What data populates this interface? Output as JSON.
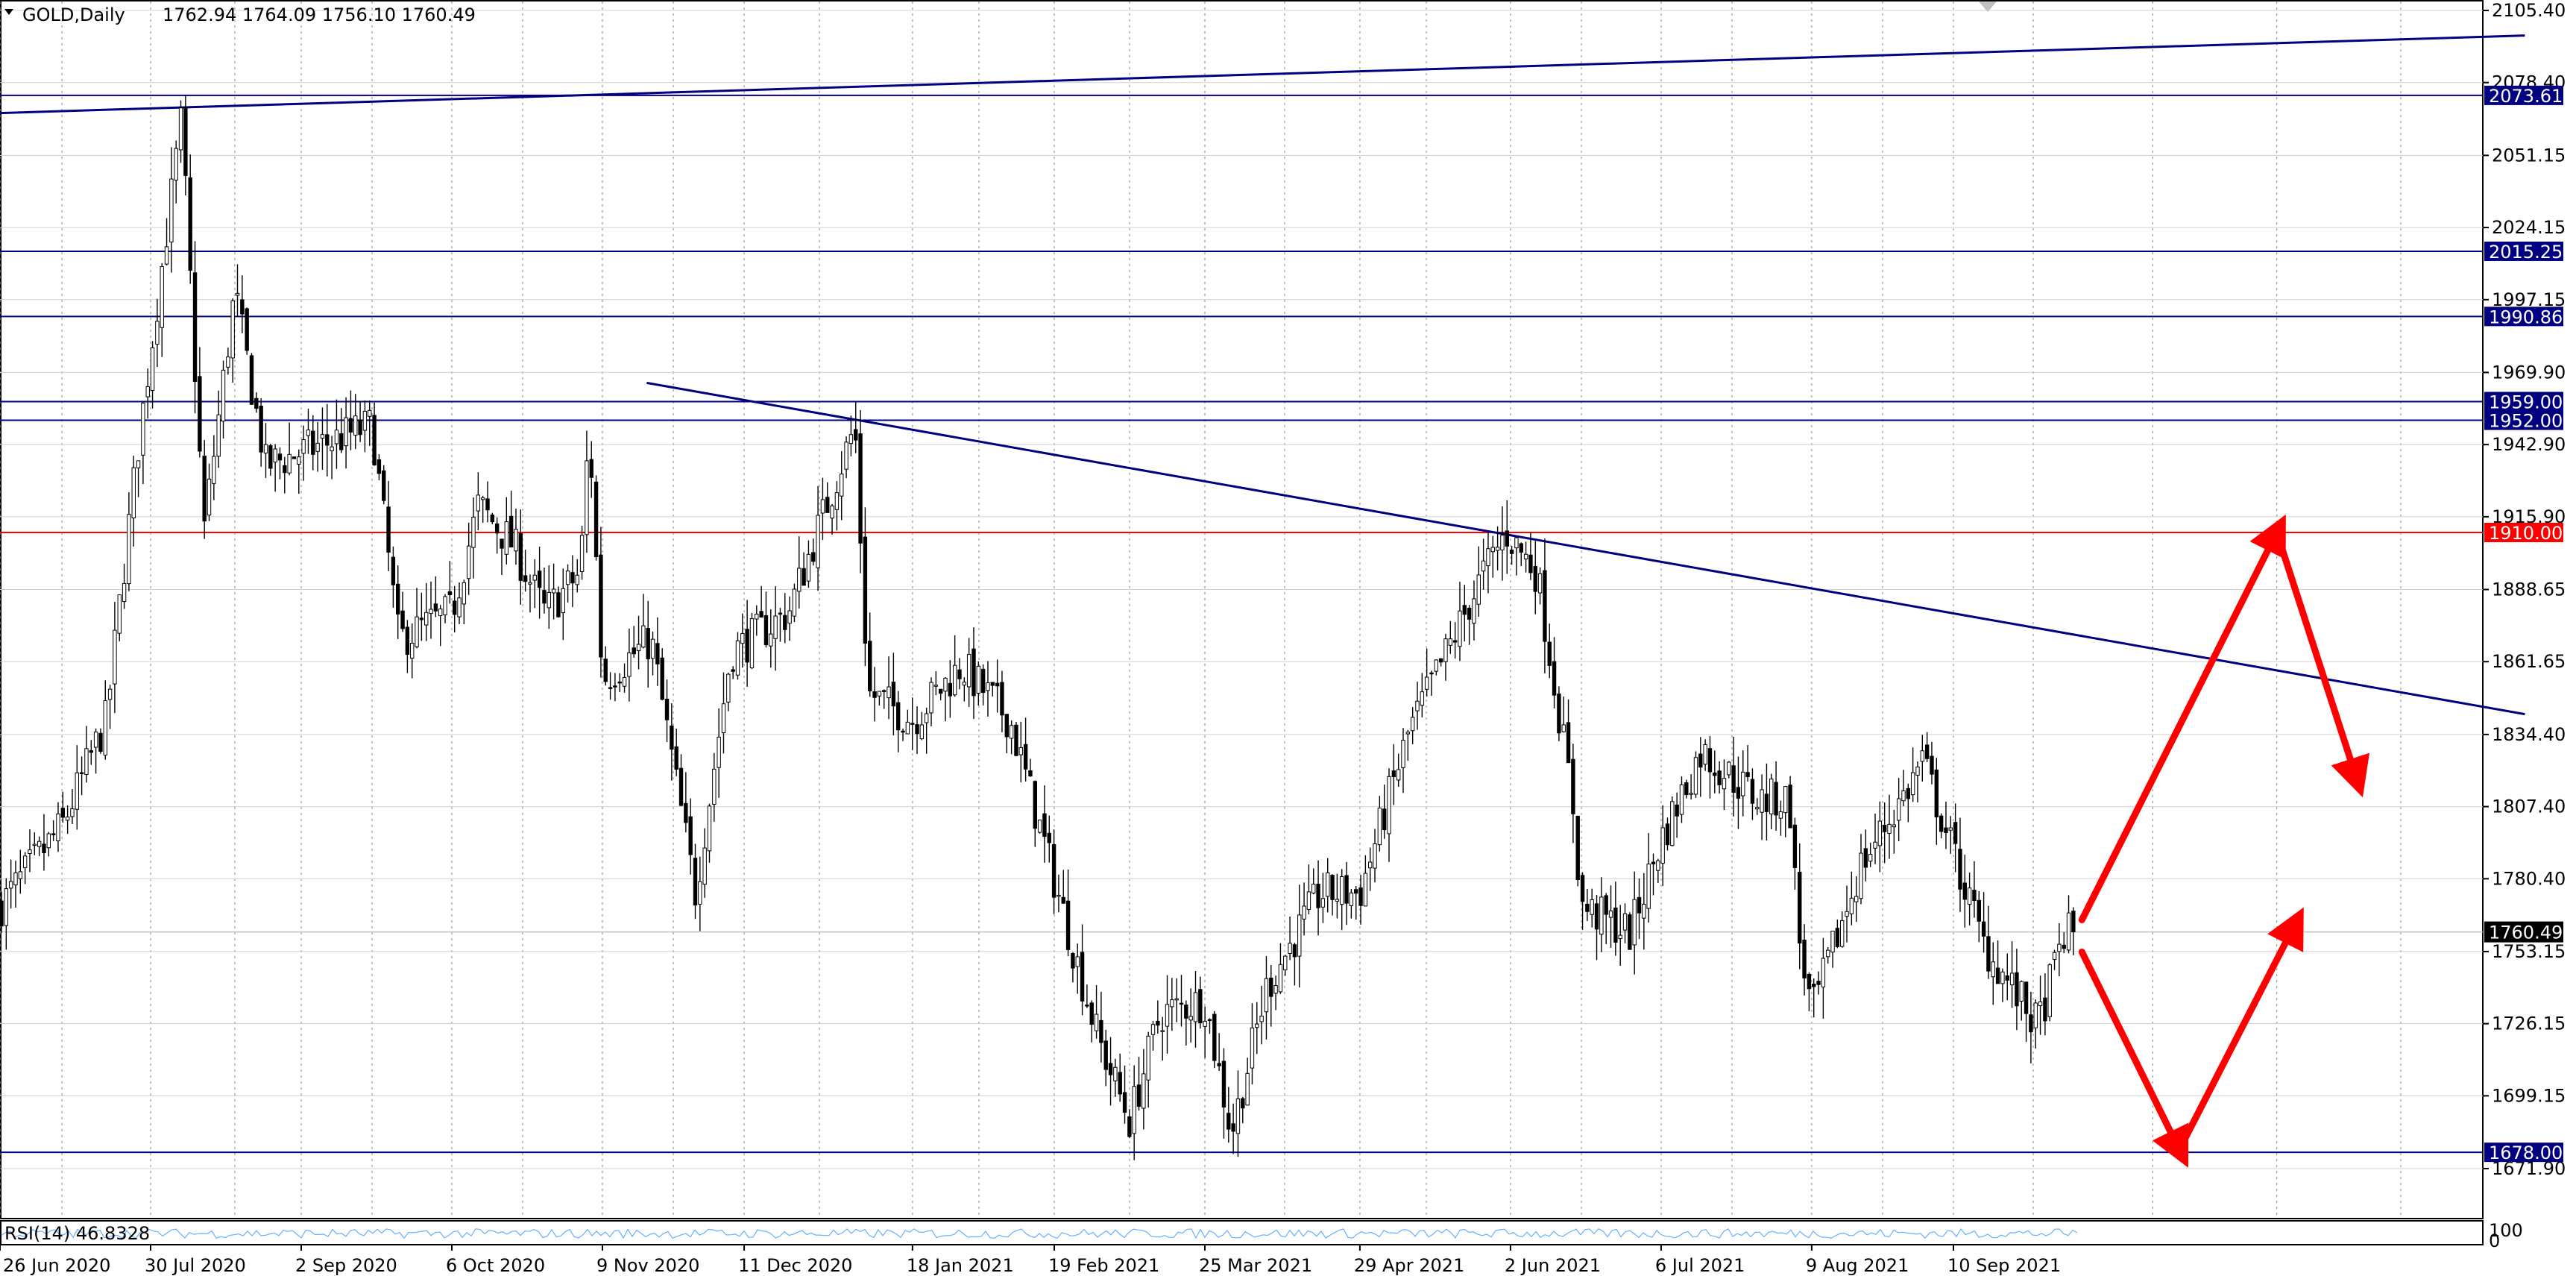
{
  "header": {
    "symbol": "GOLD,Daily",
    "ohlc": "1762.94 1764.09 1756.10 1760.49"
  },
  "price_axis": {
    "ticks": [
      "2105.40",
      "2078.40",
      "2051.15",
      "2024.15",
      "1997.15",
      "1969.90",
      "1942.90",
      "1915.90",
      "1888.65",
      "1861.65",
      "1834.40",
      "1807.40",
      "1780.40",
      "1753.15",
      "1726.15",
      "1699.15",
      "1671.90"
    ]
  },
  "levels": [
    {
      "label": "2073.61",
      "color": "#000080"
    },
    {
      "label": "2015.25",
      "color": "#000080"
    },
    {
      "label": "1990.86",
      "color": "#000080"
    },
    {
      "label": "1959.00",
      "color": "#000080"
    },
    {
      "label": "1952.00",
      "color": "#000080"
    },
    {
      "label": "1910.00",
      "color": "#ff0000"
    },
    {
      "label": "1678.00",
      "color": "#000080"
    }
  ],
  "current_price": {
    "label": "1760.49",
    "color": "#000000"
  },
  "time_axis": {
    "labels": [
      "26 Jun 2020",
      "30 Jul 2020",
      "2 Sep 2020",
      "6 Oct 2020",
      "9 Nov 2020",
      "11 Dec 2020",
      "18 Jan 2021",
      "19 Feb 2021",
      "25 Mar 2021",
      "29 Apr 2021",
      "2 Jun 2021",
      "6 Jul 2021",
      "9 Aug 2021",
      "10 Sep 2021"
    ]
  },
  "rsi": {
    "label": "RSI(14) 46.8328",
    "scale_top": "100",
    "scale_bottom": "0"
  },
  "chart_data": {
    "type": "candlestick",
    "symbol": "GOLD",
    "timeframe": "Daily",
    "last_bar_ohlc": [
      1762.94,
      1764.09,
      1756.1,
      1760.49
    ],
    "ylim": [
      1668,
      2110
    ],
    "grid": true,
    "horizontal_levels": [
      2073.61,
      2015.25,
      1990.86,
      1959.0,
      1952.0,
      1910.0,
      1678.0
    ],
    "close_series": [
      {
        "date": "2020-06-26",
        "close": 1770
      },
      {
        "date": "2020-07-10",
        "close": 1800
      },
      {
        "date": "2020-07-20",
        "close": 1840
      },
      {
        "date": "2020-07-27",
        "close": 1940
      },
      {
        "date": "2020-08-06",
        "close": 2065
      },
      {
        "date": "2020-08-11",
        "close": 1910
      },
      {
        "date": "2020-08-18",
        "close": 2000
      },
      {
        "date": "2020-08-25",
        "close": 1935
      },
      {
        "date": "2020-09-02",
        "close": 1940
      },
      {
        "date": "2020-09-10",
        "close": 1945
      },
      {
        "date": "2020-09-18",
        "close": 1950
      },
      {
        "date": "2020-09-24",
        "close": 1870
      },
      {
        "date": "2020-10-06",
        "close": 1880
      },
      {
        "date": "2020-10-12",
        "close": 1920
      },
      {
        "date": "2020-10-20",
        "close": 1905
      },
      {
        "date": "2020-10-27",
        "close": 1880
      },
      {
        "date": "2020-11-04",
        "close": 1895
      },
      {
        "date": "2020-11-06",
        "close": 1950
      },
      {
        "date": "2020-11-09",
        "close": 1855
      },
      {
        "date": "2020-11-20",
        "close": 1870
      },
      {
        "date": "2020-11-30",
        "close": 1775
      },
      {
        "date": "2020-12-08",
        "close": 1865
      },
      {
        "date": "2020-12-21",
        "close": 1880
      },
      {
        "date": "2021-01-05",
        "close": 1950
      },
      {
        "date": "2021-01-08",
        "close": 1850
      },
      {
        "date": "2021-01-18",
        "close": 1840
      },
      {
        "date": "2021-01-29",
        "close": 1860
      },
      {
        "date": "2021-02-09",
        "close": 1840
      },
      {
        "date": "2021-02-19",
        "close": 1780
      },
      {
        "date": "2021-03-01",
        "close": 1720
      },
      {
        "date": "2021-03-08",
        "close": 1690
      },
      {
        "date": "2021-03-15",
        "close": 1730
      },
      {
        "date": "2021-03-25",
        "close": 1735
      },
      {
        "date": "2021-03-31",
        "close": 1685
      },
      {
        "date": "2021-04-08",
        "close": 1740
      },
      {
        "date": "2021-04-20",
        "close": 1775
      },
      {
        "date": "2021-04-29",
        "close": 1775
      },
      {
        "date": "2021-05-10",
        "close": 1835
      },
      {
        "date": "2021-05-20",
        "close": 1870
      },
      {
        "date": "2021-05-27",
        "close": 1895
      },
      {
        "date": "2021-06-01",
        "close": 1910
      },
      {
        "date": "2021-06-08",
        "close": 1895
      },
      {
        "date": "2021-06-16",
        "close": 1810
      },
      {
        "date": "2021-06-18",
        "close": 1770
      },
      {
        "date": "2021-06-29",
        "close": 1760
      },
      {
        "date": "2021-07-06",
        "close": 1795
      },
      {
        "date": "2021-07-15",
        "close": 1828
      },
      {
        "date": "2021-07-28",
        "close": 1810
      },
      {
        "date": "2021-08-04",
        "close": 1810
      },
      {
        "date": "2021-08-06",
        "close": 1760
      },
      {
        "date": "2021-08-09",
        "close": 1730
      },
      {
        "date": "2021-08-20",
        "close": 1785
      },
      {
        "date": "2021-08-31",
        "close": 1815
      },
      {
        "date": "2021-09-03",
        "close": 1825
      },
      {
        "date": "2021-09-10",
        "close": 1790
      },
      {
        "date": "2021-09-17",
        "close": 1755
      },
      {
        "date": "2021-09-29",
        "close": 1725
      },
      {
        "date": "2021-10-05",
        "close": 1760
      },
      {
        "date": "2021-10-08",
        "close": 1760.49
      }
    ],
    "trendlines": [
      {
        "color": "#000080",
        "from": {
          "date": "2020-06-26",
          "price": 2067
        },
        "to": {
          "date": "2022-01-17",
          "price": 2096
        }
      },
      {
        "color": "#000080",
        "from": {
          "date": "2020-11-19",
          "price": 1966
        },
        "to": {
          "date": "2022-01-17",
          "price": 1842
        }
      }
    ],
    "projection_arrows": [
      {
        "color": "#ff0000",
        "from": {
          "date": "2021-10-09",
          "price": 1765
        },
        "to": {
          "date": "2021-11-22",
          "price": 1910
        }
      },
      {
        "color": "#ff0000",
        "from": {
          "date": "2021-11-22",
          "price": 1910
        },
        "to": {
          "date": "2021-12-10",
          "price": 1818
        }
      },
      {
        "color": "#ff0000",
        "from": {
          "date": "2021-10-09",
          "price": 1753
        },
        "to": {
          "date": "2021-10-31",
          "price": 1679
        }
      },
      {
        "color": "#ff0000",
        "from": {
          "date": "2021-10-31",
          "price": 1679
        },
        "to": {
          "date": "2021-11-26",
          "price": 1763
        }
      }
    ],
    "rsi": {
      "period": 14,
      "value": 46.8328,
      "ylim": [
        0,
        100
      ]
    }
  }
}
